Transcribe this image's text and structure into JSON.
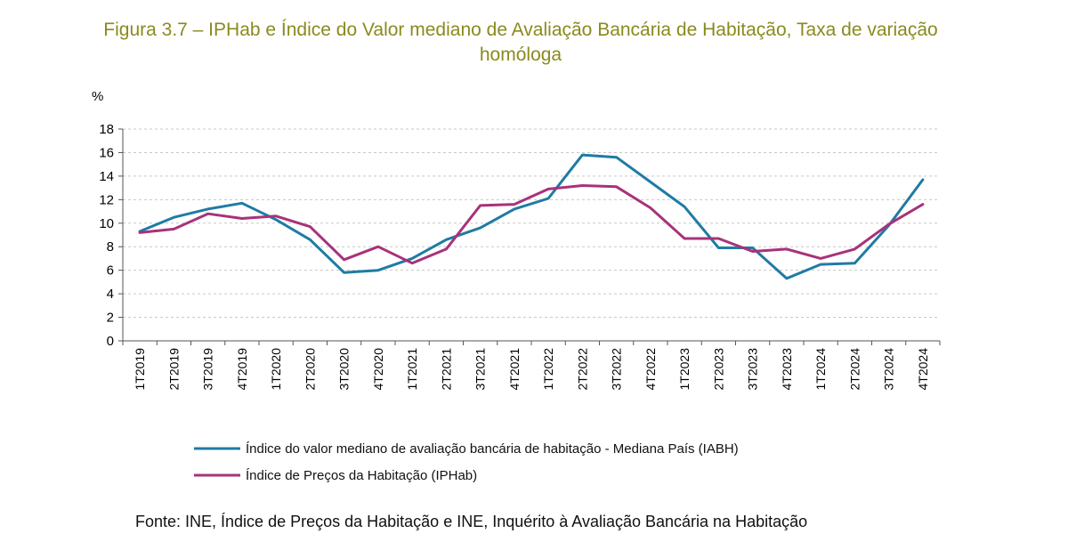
{
  "figure": {
    "title_line1": "Figura 3.7 – IPHab e Índice do Valor mediano de Avaliação Bancária de Habitação, Taxa de variação",
    "title_line2": "homóloga",
    "source": "Fonte: INE, Índice de Preços da Habitação e INE, Inquérito à Avaliação Bancária na Habitação"
  },
  "colors": {
    "title": "#8a8a1e",
    "iabh": "#1f7ba4",
    "iphab": "#a8327a",
    "grid": "#c8c8c8"
  },
  "chart_data": {
    "type": "line",
    "ylabel": "%",
    "ylim": [
      0,
      18
    ],
    "yticks": [
      0,
      2,
      4,
      6,
      8,
      10,
      12,
      14,
      16,
      18
    ],
    "grid": "horizontal dashed",
    "legend_position": "bottom",
    "categories": [
      "1T2019",
      "2T2019",
      "3T2019",
      "4T2019",
      "1T2020",
      "2T2020",
      "3T2020",
      "4T2020",
      "1T2021",
      "2T2021",
      "3T2021",
      "4T2021",
      "1T2022",
      "2T2022",
      "3T2022",
      "4T2022",
      "1T2023",
      "2T2023",
      "3T2023",
      "4T2023",
      "1T2024",
      "2T2024",
      "3T2024",
      "4T2024"
    ],
    "series": [
      {
        "name": "Índice do valor mediano de avaliação bancária de habitação - Mediana País (IABH)",
        "color": "#1f7ba4",
        "values": [
          9.3,
          10.5,
          11.2,
          11.7,
          10.3,
          8.6,
          5.8,
          6.0,
          7.0,
          8.6,
          9.6,
          11.2,
          12.1,
          15.8,
          15.6,
          13.5,
          11.4,
          7.9,
          7.9,
          5.3,
          6.5,
          6.6,
          9.8,
          13.7
        ]
      },
      {
        "name": "Índice de Preços da Habitação (IPHab)",
        "color": "#a8327a",
        "values": [
          9.2,
          9.5,
          10.8,
          10.4,
          10.6,
          9.7,
          6.9,
          8.0,
          6.6,
          7.8,
          11.5,
          11.6,
          12.9,
          13.2,
          13.1,
          11.3,
          8.7,
          8.7,
          7.6,
          7.8,
          7.0,
          7.8,
          9.9,
          11.6
        ]
      }
    ]
  }
}
